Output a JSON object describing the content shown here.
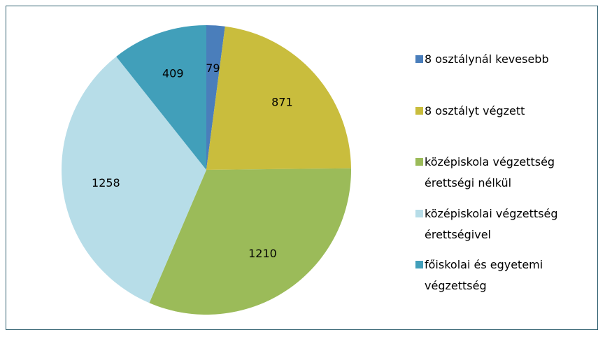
{
  "chart_data": {
    "type": "pie",
    "categories": [
      "8 osztálynál kevesebb",
      "8 osztályt végzett",
      "középiskola végzettség érettségi nélkül",
      "középiskolai végzettség érettségivel",
      "főiskolai és egyetemi végzettség"
    ],
    "values": [
      79,
      871,
      1210,
      1258,
      409
    ],
    "colors": [
      "#4a7ebb",
      "#c9bd3d",
      "#9bbb59",
      "#b7dde8",
      "#419fba"
    ],
    "legend": "right"
  }
}
